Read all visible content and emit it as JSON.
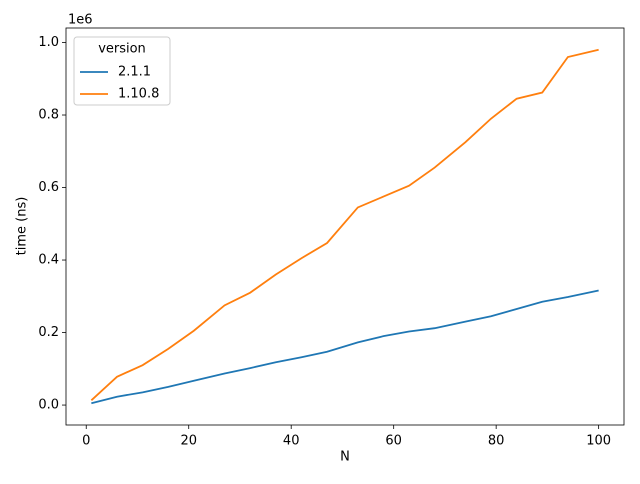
{
  "chart_data": {
    "type": "line",
    "x_label": "N",
    "y_label": "time (ns)",
    "y_offset_label": "1e6",
    "x": [
      1,
      6,
      11,
      16,
      21,
      27,
      32,
      37,
      42,
      47,
      53,
      58,
      63,
      68,
      74,
      79,
      84,
      89,
      94,
      100
    ],
    "series": [
      {
        "name": "2.1.1",
        "color": "#1f77b4",
        "values": [
          5000,
          23000,
          35000,
          50000,
          67000,
          87000,
          102000,
          118000,
          132000,
          147000,
          173000,
          190000,
          203000,
          212000,
          230000,
          245000,
          265000,
          285000,
          298000,
          316000
        ]
      },
      {
        "name": "1.10.8",
        "color": "#ff7f0e",
        "values": [
          13000,
          78000,
          110000,
          155000,
          205000,
          275000,
          310000,
          360000,
          405000,
          447000,
          545000,
          575000,
          605000,
          655000,
          725000,
          790000,
          845000,
          862000,
          960000,
          980000
        ]
      }
    ],
    "legend_title": "version",
    "legend": "upper left",
    "xlim": [
      -3.95,
      104.95
    ],
    "xticks": [
      0,
      20,
      40,
      60,
      80,
      100
    ],
    "ylim": [
      -55000,
      1040000
    ],
    "yticks": [
      {
        "value": 0,
        "label": "0.0"
      },
      {
        "value": 200000,
        "label": "0.2"
      },
      {
        "value": 400000,
        "label": "0.4"
      },
      {
        "value": 600000,
        "label": "0.6"
      },
      {
        "value": 800000,
        "label": "0.8"
      },
      {
        "value": 1000000,
        "label": "1.0"
      }
    ]
  }
}
